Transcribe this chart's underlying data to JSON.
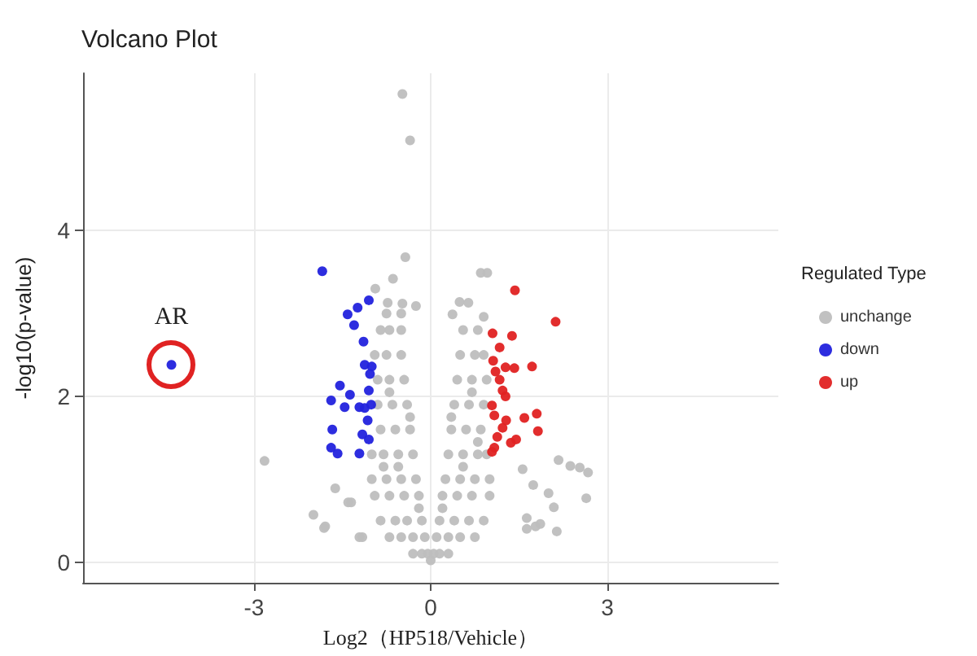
{
  "chart_data": {
    "type": "scatter",
    "title": "Volcano Plot",
    "xlabel": "Log2（HP518/Vehicle）",
    "ylabel": "-log10(p-value)",
    "legend_title": "Regulated Type",
    "xlim": [
      -5.9,
      5.9
    ],
    "ylim": [
      -0.25,
      5.9
    ],
    "xticks": [
      -3,
      0,
      3
    ],
    "yticks": [
      0,
      2,
      4
    ],
    "grid": true,
    "legend": "right",
    "marker": "circle",
    "annotations": [
      {
        "text": "AR",
        "x": -4.4,
        "y": 2.38
      }
    ],
    "series": [
      {
        "name": "unchange",
        "color": "#bebebe",
        "x": [
          -0.48,
          -0.35,
          -2.82,
          -1.99,
          -1.79,
          -1.4,
          -1.16,
          -1.81,
          -1.21,
          -1.62,
          -1.35,
          -0.43,
          -0.64,
          -0.94,
          -0.73,
          -0.48,
          -0.25,
          0.85,
          0.96,
          0.49,
          0.64,
          0.37,
          0.9,
          2.17,
          2.37,
          2.53,
          2.67,
          2.64,
          2.0,
          2.09,
          1.86,
          2.14,
          1.63,
          1.63,
          1.78,
          1.56,
          1.74,
          0,
          -0.05,
          -0.15,
          -0.3,
          -0.1,
          -0.3,
          -0.5,
          -0.7,
          -0.15,
          -0.4,
          -0.6,
          -0.85,
          -0.2,
          -0.45,
          -0.7,
          -0.95,
          -0.25,
          -0.5,
          -0.75,
          -1.0,
          -0.3,
          -0.55,
          -0.8,
          -1.0,
          -0.35,
          -0.6,
          -0.85,
          -0.4,
          -0.65,
          -0.9,
          -0.45,
          -0.7,
          -0.9,
          -0.5,
          -0.75,
          -0.95,
          -0.5,
          -0.7,
          -0.85,
          -0.5,
          -0.75,
          0.05,
          0.15,
          0.3,
          0.1,
          0.3,
          0.5,
          0.75,
          0.15,
          0.4,
          0.65,
          0.9,
          0.2,
          0.45,
          0.7,
          1.0,
          0.25,
          0.5,
          0.75,
          1.0,
          0.3,
          0.55,
          0.8,
          0.95,
          0.35,
          0.6,
          0.85,
          0.4,
          0.65,
          0.9,
          0.45,
          0.7,
          0.95,
          0.5,
          0.75,
          0.9,
          0.55,
          0.8,
          -0.2,
          -0.55,
          -0.8,
          0.2,
          0.55,
          0.8,
          -0.35,
          -0.7,
          0.35,
          0.7
        ],
        "values": [
          5.65,
          5.09,
          1.22,
          0.57,
          0.43,
          0.72,
          0.3,
          0.41,
          0.3,
          0.89,
          0.72,
          3.68,
          3.42,
          3.3,
          3.13,
          3.12,
          3.09,
          3.49,
          3.49,
          3.14,
          3.13,
          2.99,
          2.96,
          1.23,
          1.16,
          1.14,
          1.08,
          0.77,
          0.83,
          0.66,
          0.46,
          0.37,
          0.53,
          0.4,
          0.43,
          1.12,
          0.93,
          0.02,
          0.1,
          0.1,
          0.1,
          0.3,
          0.3,
          0.3,
          0.3,
          0.5,
          0.5,
          0.5,
          0.5,
          0.8,
          0.8,
          0.8,
          0.8,
          1.0,
          1.0,
          1.0,
          1.0,
          1.3,
          1.3,
          1.3,
          1.3,
          1.6,
          1.6,
          1.6,
          1.9,
          1.9,
          1.9,
          2.2,
          2.2,
          2.2,
          2.5,
          2.5,
          2.5,
          2.8,
          2.8,
          2.8,
          3.0,
          3.0,
          0.1,
          0.1,
          0.1,
          0.3,
          0.3,
          0.3,
          0.3,
          0.5,
          0.5,
          0.5,
          0.5,
          0.8,
          0.8,
          0.8,
          0.8,
          1.0,
          1.0,
          1.0,
          1.0,
          1.3,
          1.3,
          1.3,
          1.3,
          1.6,
          1.6,
          1.6,
          1.9,
          1.9,
          1.9,
          2.2,
          2.2,
          2.2,
          2.5,
          2.5,
          2.5,
          2.8,
          2.8,
          0.65,
          1.15,
          1.15,
          0.65,
          1.15,
          1.45,
          1.75,
          2.05,
          1.75,
          2.05
        ]
      },
      {
        "name": "down",
        "color": "#2222dd",
        "x": [
          -4.4,
          -1.84,
          -1.41,
          -1.24,
          -1.05,
          -1.3,
          -1.14,
          -1.12,
          -1.0,
          -1.03,
          -1.54,
          -1.69,
          -1.37,
          -1.46,
          -1.21,
          -1.12,
          -1.05,
          -1.01,
          -1.67,
          -1.07,
          -1.16,
          -1.05,
          -1.69,
          -1.58,
          -1.21
        ],
        "values": [
          2.38,
          3.51,
          2.99,
          3.07,
          3.16,
          2.86,
          2.66,
          2.38,
          2.36,
          2.27,
          2.13,
          1.95,
          2.02,
          1.87,
          1.87,
          1.86,
          2.07,
          1.9,
          1.6,
          1.71,
          1.54,
          1.48,
          1.38,
          1.31,
          1.31
        ]
      },
      {
        "name": "up",
        "color": "#e02222",
        "x": [
          1.43,
          2.12,
          1.05,
          1.38,
          1.17,
          1.06,
          1.1,
          1.27,
          1.42,
          1.72,
          1.17,
          1.22,
          1.27,
          1.04,
          1.08,
          1.59,
          1.8,
          1.22,
          1.28,
          1.82,
          1.13,
          1.36,
          1.45,
          1.08,
          1.04
        ],
        "values": [
          3.28,
          2.9,
          2.76,
          2.73,
          2.59,
          2.43,
          2.3,
          2.35,
          2.34,
          2.36,
          2.2,
          2.07,
          2.0,
          1.89,
          1.77,
          1.74,
          1.79,
          1.62,
          1.71,
          1.58,
          1.51,
          1.44,
          1.48,
          1.38,
          1.33
        ]
      }
    ]
  }
}
